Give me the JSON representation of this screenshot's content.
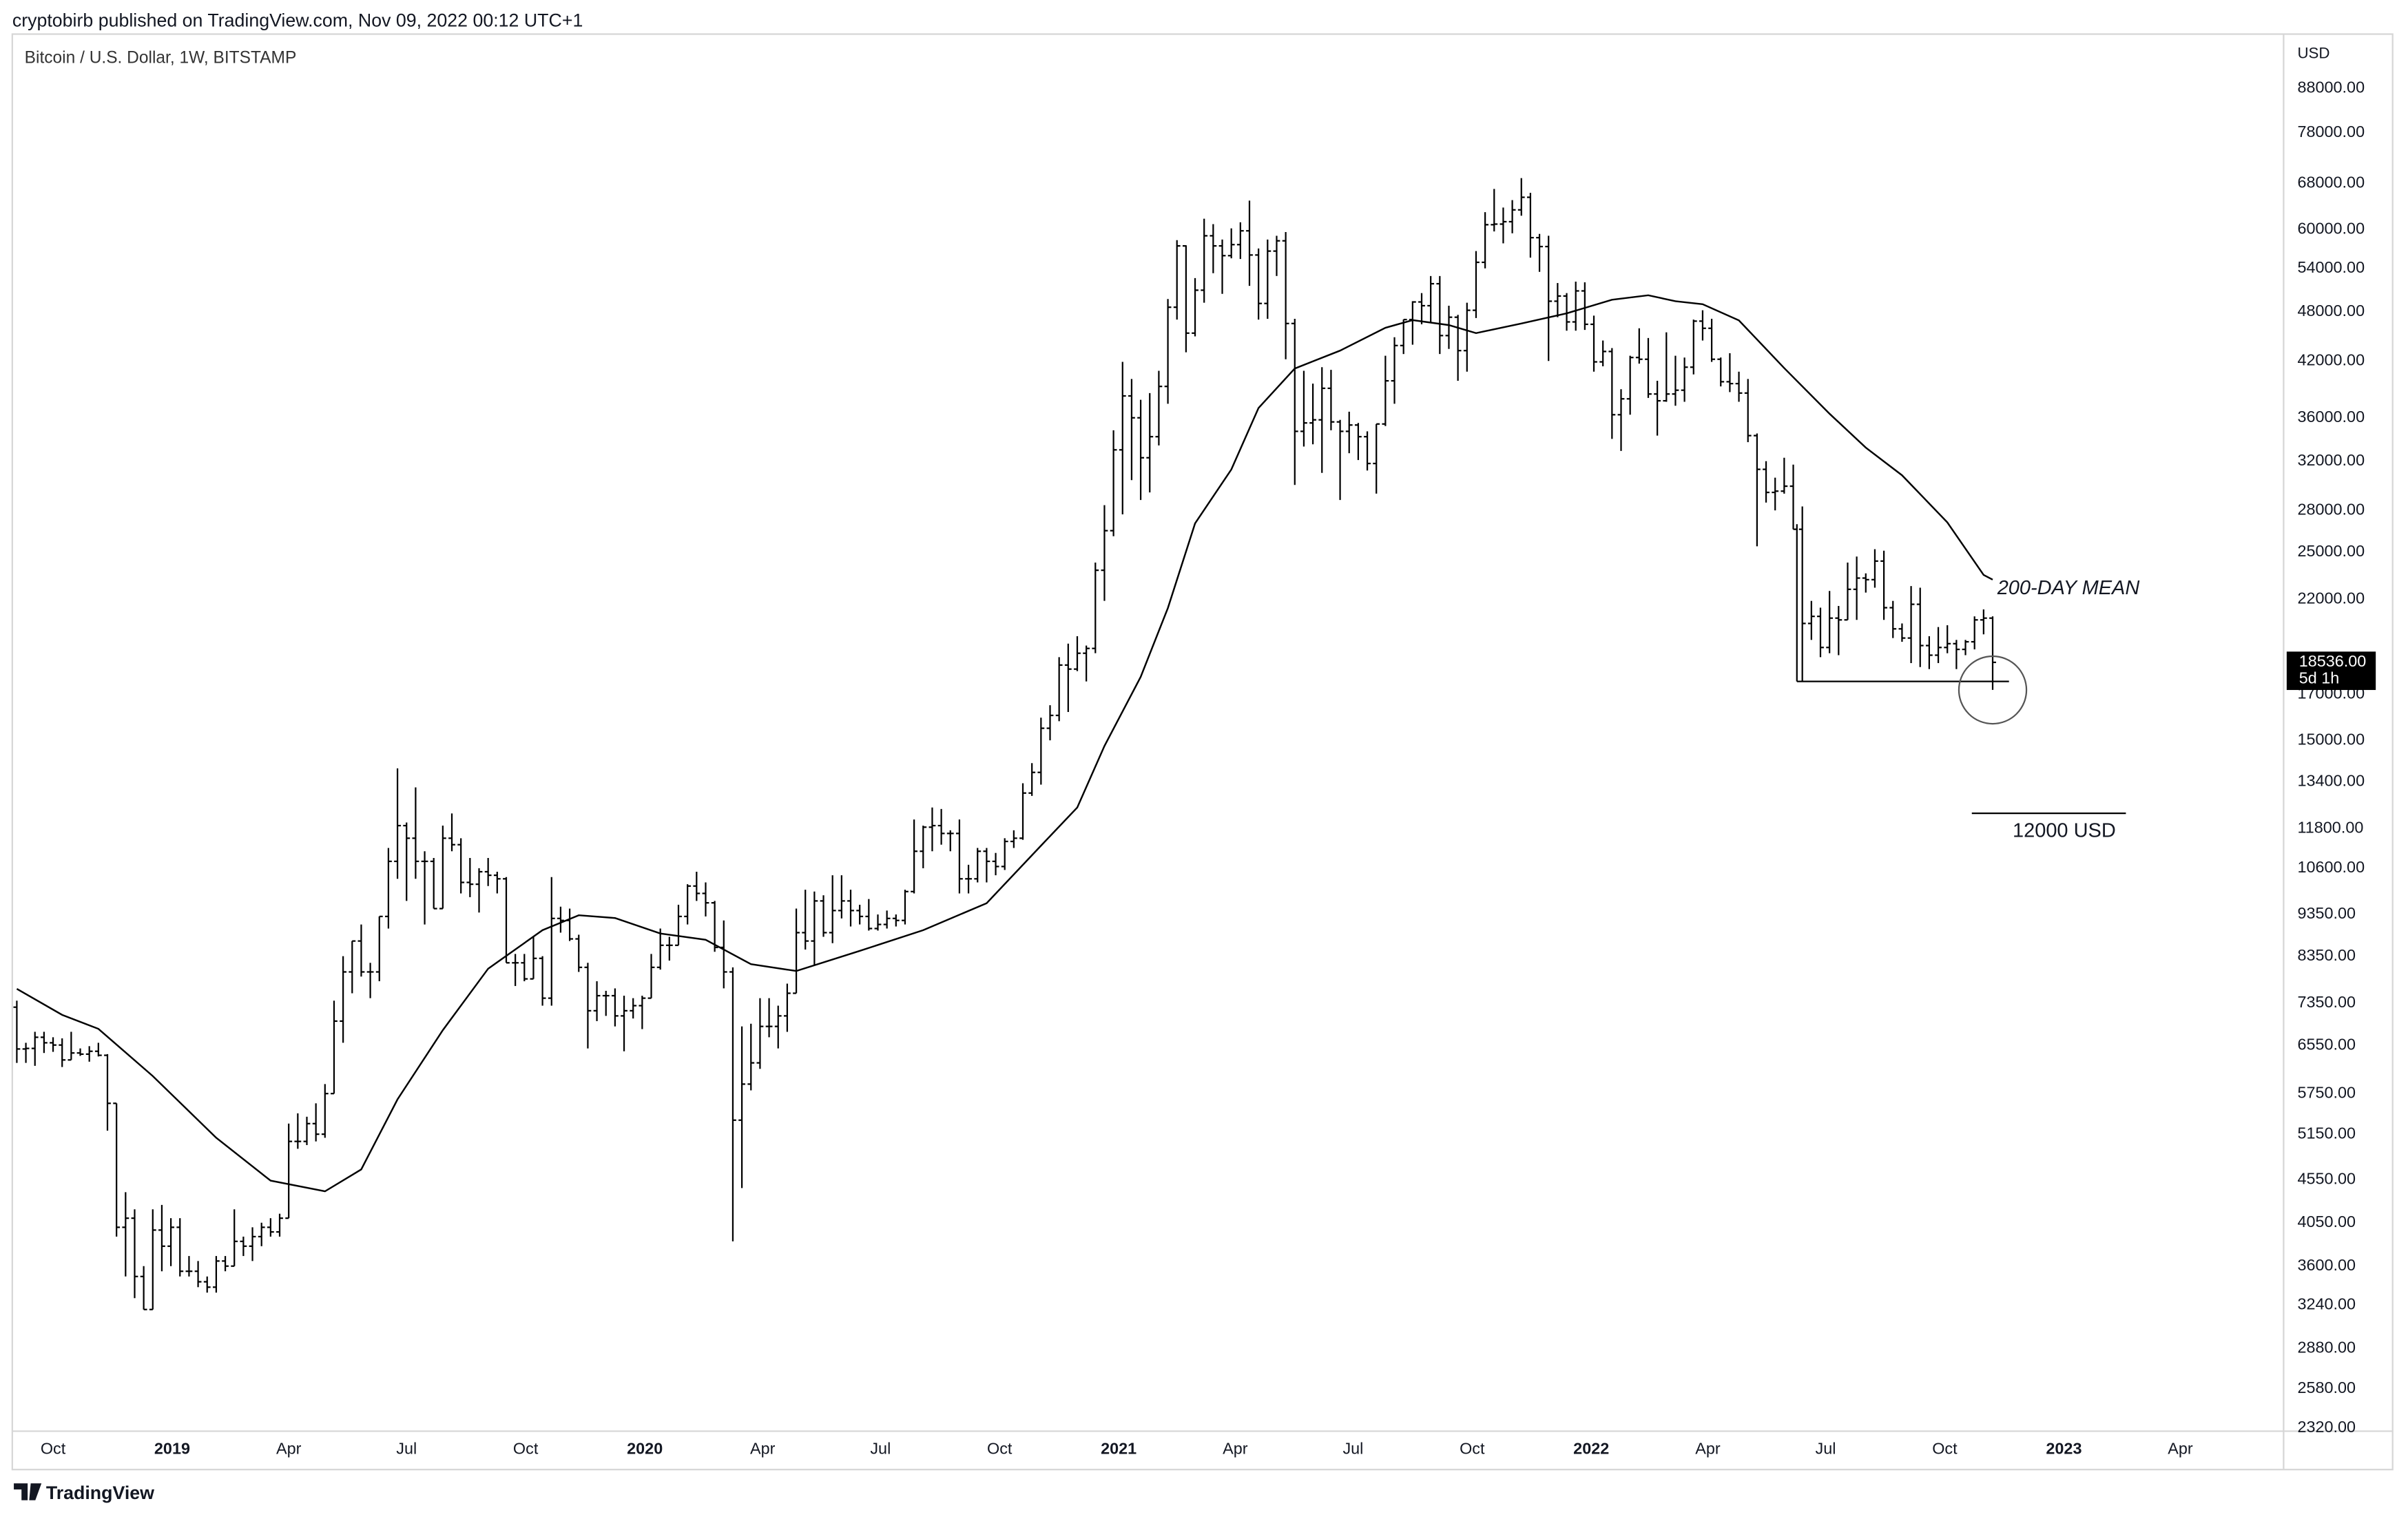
{
  "header": "cryptobirb published on TradingView.com, Nov 09, 2022 00:12 UTC+1",
  "footer": "TradingView",
  "chart_data": {
    "type": "ohlc",
    "title": "Bitcoin / U.S. Dollar, 1W, BITSTAMP",
    "y_unit": "USD",
    "color": "#000000",
    "log_scale": true,
    "grid": false,
    "xlim": [
      -0.5,
      250.1
    ],
    "ylim": [
      2300,
      102000
    ],
    "xticks": [
      {
        "value": 4,
        "label": "Oct"
      },
      {
        "value": 17.14,
        "label": "2019"
      },
      {
        "value": 30,
        "label": "Apr"
      },
      {
        "value": 43,
        "label": "Jul"
      },
      {
        "value": 56.14,
        "label": "Oct"
      },
      {
        "value": 69.29,
        "label": "2020"
      },
      {
        "value": 82.29,
        "label": "Apr"
      },
      {
        "value": 95.29,
        "label": "Jul"
      },
      {
        "value": 108.43,
        "label": "Oct"
      },
      {
        "value": 121.57,
        "label": "2021"
      },
      {
        "value": 134.43,
        "label": "Apr"
      },
      {
        "value": 147.43,
        "label": "Jul"
      },
      {
        "value": 160.57,
        "label": "Oct"
      },
      {
        "value": 173.71,
        "label": "2022"
      },
      {
        "value": 186.57,
        "label": "Apr"
      },
      {
        "value": 199.57,
        "label": "Jul"
      },
      {
        "value": 212.71,
        "label": "Oct"
      },
      {
        "value": 225.86,
        "label": "2023"
      },
      {
        "value": 238.71,
        "label": "Apr"
      }
    ],
    "yticks": [
      {
        "value": 88000,
        "label": "88000.00"
      },
      {
        "value": 78000,
        "label": "78000.00"
      },
      {
        "value": 68000,
        "label": "68000.00"
      },
      {
        "value": 60000,
        "label": "60000.00"
      },
      {
        "value": 54000,
        "label": "54000.00"
      },
      {
        "value": 48000,
        "label": "48000.00"
      },
      {
        "value": 42000,
        "label": "42000.00"
      },
      {
        "value": 36000,
        "label": "36000.00"
      },
      {
        "value": 32000,
        "label": "32000.00"
      },
      {
        "value": 28000,
        "label": "28000.00"
      },
      {
        "value": 25000,
        "label": "25000.00"
      },
      {
        "value": 22000,
        "label": "22000.00"
      },
      {
        "value": 17000,
        "label": "17000.00"
      },
      {
        "value": 15000,
        "label": "15000.00"
      },
      {
        "value": 13400,
        "label": "13400.00"
      },
      {
        "value": 11800,
        "label": "11800.00"
      },
      {
        "value": 10600,
        "label": "10600.00"
      },
      {
        "value": 9350,
        "label": "9350.00"
      },
      {
        "value": 8350,
        "label": "8350.00"
      },
      {
        "value": 7350,
        "label": "7350.00"
      },
      {
        "value": 6550,
        "label": "6550.00"
      },
      {
        "value": 5750,
        "label": "5750.00"
      },
      {
        "value": 5150,
        "label": "5150.00"
      },
      {
        "value": 4550,
        "label": "4550.00"
      },
      {
        "value": 4050,
        "label": "4050.00"
      },
      {
        "value": 3600,
        "label": "3600.00"
      },
      {
        "value": 3240,
        "label": "3240.00"
      },
      {
        "value": 2880,
        "label": "2880.00"
      },
      {
        "value": 2580,
        "label": "2580.00"
      },
      {
        "value": 2320,
        "label": "2320.00"
      }
    ],
    "x": [
      0,
      1,
      2,
      3,
      4,
      5,
      6,
      7,
      8,
      9,
      10,
      11,
      12,
      13,
      14,
      15,
      16,
      17,
      18,
      19,
      20,
      21,
      22,
      23,
      24,
      25,
      26,
      27,
      28,
      29,
      30,
      31,
      32,
      33,
      34,
      35,
      36,
      37,
      38,
      39,
      40,
      41,
      42,
      43,
      44,
      45,
      46,
      47,
      48,
      49,
      50,
      51,
      52,
      53,
      54,
      55,
      56,
      57,
      58,
      59,
      60,
      61,
      62,
      63,
      64,
      65,
      66,
      67,
      68,
      69,
      70,
      71,
      72,
      73,
      74,
      75,
      76,
      77,
      78,
      79,
      80,
      81,
      82,
      83,
      84,
      85,
      86,
      87,
      88,
      89,
      90,
      91,
      92,
      93,
      94,
      95,
      96,
      97,
      98,
      99,
      100,
      101,
      102,
      103,
      104,
      105,
      106,
      107,
      108,
      109,
      110,
      111,
      112,
      113,
      114,
      115,
      116,
      117,
      118,
      119,
      120,
      121,
      122,
      123,
      124,
      125,
      126,
      127,
      128,
      129,
      130,
      131,
      132,
      133,
      134,
      135,
      136,
      137,
      138,
      139,
      140,
      141,
      142,
      143,
      144,
      145,
      146,
      147,
      148,
      149,
      150,
      151,
      152,
      153,
      154,
      155,
      156,
      157,
      158,
      159,
      160,
      161,
      162,
      163,
      164,
      165,
      166,
      167,
      168,
      169,
      170,
      171,
      172,
      173,
      174,
      175,
      176,
      177,
      178,
      179,
      180,
      181,
      182,
      183,
      184,
      185,
      186,
      187,
      188,
      189,
      190,
      191,
      192,
      193,
      194,
      195,
      196,
      197,
      198,
      199,
      200,
      201,
      202,
      203,
      204,
      205,
      206,
      207,
      208,
      209,
      210,
      211,
      212,
      213,
      214,
      215,
      216,
      217,
      218
    ],
    "open": [
      7270,
      6490,
      6500,
      6700,
      6600,
      6560,
      6300,
      6420,
      6400,
      6450,
      6380,
      5600,
      4000,
      4100,
      3500,
      3200,
      3970,
      3800,
      4000,
      3550,
      3550,
      3450,
      3400,
      3650,
      3600,
      3850,
      3800,
      3900,
      4000,
      3950,
      4100,
      5050,
      5050,
      5300,
      5150,
      5750,
      7000,
      8000,
      8700,
      8000,
      8000,
      9300,
      10800,
      11900,
      11500,
      10800,
      10800,
      9500,
      11500,
      11300,
      10200,
      10150,
      10500,
      10400,
      10300,
      8200,
      8200,
      7850,
      8300,
      7450,
      9250,
      9200,
      8750,
      8100,
      7200,
      7500,
      7500,
      7100,
      7200,
      7300,
      7450,
      8100,
      8600,
      8600,
      9300,
      10100,
      9900,
      9650,
      8550,
      8000,
      5350,
      5900,
      6250,
      6900,
      6900,
      7100,
      7550,
      8900,
      8700,
      9700,
      8900,
      9450,
      9700,
      9450,
      9300,
      9000,
      9100,
      9250,
      9200,
      9950,
      11100,
      11850,
      11900,
      11650,
      11650,
      10300,
      10300,
      11100,
      10800,
      10650,
      11400,
      11500,
      13000,
      13750,
      15500,
      16050,
      18400,
      18200,
      19000,
      19250,
      23800,
      26500,
      33000,
      38200,
      36000,
      32300,
      34200,
      39200,
      48600,
      57400,
      45300,
      50900,
      59000,
      57400,
      55900,
      57600,
      59800,
      56000,
      49100,
      56600,
      58200,
      46500,
      34700,
      35500,
      35800,
      39000,
      35600,
      34700,
      35300,
      34200,
      31800,
      35400,
      39800,
      43800,
      47000,
      49300,
      48800,
      51800,
      45000,
      47300,
      43200,
      48200,
      54900,
      60800,
      60900,
      61300,
      63300,
      65500,
      58700,
      57300,
      49400,
      50100,
      46700,
      50800,
      46400,
      41900,
      43100,
      36300,
      37900,
      42400,
      42200,
      38400,
      37700,
      38400,
      38800,
      41300,
      46800,
      45900,
      42200,
      39700,
      39500,
      38500,
      34300,
      31300,
      29400,
      29500,
      29900,
      26600,
      20600,
      21000,
      19300,
      20900,
      20800,
      22600,
      23300,
      23200,
      24400,
      21500,
      20300,
      19800,
      21700,
      19400,
      18900,
      19300,
      19500,
      19200,
      19600,
      20800,
      20900
    ],
    "high": [
      7400,
      6600,
      6800,
      6800,
      6700,
      6680,
      6800,
      6500,
      6540,
      6600,
      6400,
      5600,
      4400,
      4200,
      3600,
      4200,
      4250,
      4100,
      4100,
      3700,
      3650,
      3500,
      3700,
      3700,
      4200,
      3900,
      4000,
      4050,
      4100,
      4150,
      5300,
      5450,
      5400,
      5600,
      5900,
      7400,
      8350,
      8700,
      9100,
      8200,
      9300,
      11200,
      13900,
      12000,
      13200,
      11100,
      10900,
      11900,
      12300,
      11500,
      10900,
      10600,
      10900,
      10500,
      10350,
      8400,
      8400,
      8800,
      8350,
      10350,
      9550,
      9500,
      8850,
      8200,
      7800,
      7600,
      7650,
      7500,
      7450,
      7500,
      8400,
      9000,
      8800,
      9600,
      10150,
      10500,
      10200,
      9700,
      9200,
      8100,
      6900,
      6950,
      7450,
      7450,
      7300,
      7750,
      9500,
      10000,
      9950,
      9850,
      10400,
      10400,
      10000,
      9600,
      9750,
      9350,
      9450,
      9350,
      10000,
      12100,
      11900,
      12500,
      12450,
      11750,
      12100,
      10700,
      11200,
      11200,
      11050,
      11500,
      11750,
      13350,
      14100,
      15950,
      16500,
      18800,
      19500,
      19900,
      19400,
      24300,
      28400,
      34800,
      41900,
      40000,
      37800,
      38500,
      40900,
      49700,
      58300,
      57500,
      52600,
      61800,
      60900,
      58400,
      60200,
      61200,
      64900,
      57000,
      58400,
      59000,
      59600,
      47100,
      40900,
      39500,
      41300,
      41000,
      35800,
      36600,
      35500,
      34700,
      35400,
      42600,
      44800,
      47000,
      49400,
      50500,
      52900,
      52900,
      48800,
      47600,
      49200,
      56600,
      62900,
      67000,
      63700,
      65000,
      69000,
      66300,
      59300,
      59000,
      51900,
      50500,
      52100,
      52000,
      47500,
      44400,
      43500,
      38900,
      42600,
      45900,
      44700,
      39800,
      45400,
      42600,
      42400,
      47000,
      48200,
      47100,
      42400,
      42900,
      40800,
      40000,
      34500,
      32000,
      30600,
      32300,
      31700,
      28300,
      21900,
      21500,
      22500,
      21600,
      24300,
      24700,
      23600,
      25200,
      25100,
      21900,
      20600,
      22800,
      22700,
      19900,
      20400,
      20500,
      19700,
      19700,
      21000,
      21400,
      21000
    ],
    "low": [
      6250,
      6250,
      6200,
      6420,
      6440,
      6180,
      6300,
      6370,
      6270,
      6360,
      5200,
      3900,
      3500,
      3300,
      3200,
      3200,
      3550,
      3600,
      3500,
      3500,
      3400,
      3350,
      3350,
      3550,
      3600,
      3700,
      3650,
      3800,
      3900,
      3900,
      4100,
      4950,
      5000,
      5050,
      5100,
      5750,
      6600,
      7550,
      7900,
      7450,
      7800,
      9000,
      10300,
      9700,
      10300,
      9100,
      9500,
      9500,
      11100,
      9900,
      9800,
      9400,
      10100,
      9900,
      8200,
      7700,
      7800,
      7850,
      7300,
      7300,
      8900,
      8700,
      8000,
      6500,
      7000,
      7100,
      6900,
      6450,
      7050,
      6850,
      7450,
      8050,
      8250,
      8600,
      9100,
      9700,
      9300,
      8450,
      7650,
      3850,
      4450,
      5800,
      6150,
      6700,
      6500,
      6800,
      7550,
      8500,
      8150,
      8800,
      8650,
      9250,
      9050,
      9100,
      8950,
      8950,
      9000,
      9050,
      9100,
      9900,
      10600,
      11100,
      11300,
      11100,
      9900,
      9900,
      10200,
      10200,
      10400,
      10550,
      11200,
      11450,
      12900,
      13300,
      15000,
      15800,
      16200,
      18100,
      17600,
      19000,
      21900,
      26100,
      27700,
      30400,
      28800,
      29400,
      33400,
      37400,
      47000,
      43000,
      44900,
      49200,
      53300,
      50400,
      55500,
      55400,
      51500,
      47000,
      47100,
      52900,
      42200,
      30000,
      33300,
      33500,
      31000,
      34800,
      28800,
      32700,
      32100,
      31200,
      29300,
      35200,
      37400,
      42800,
      43900,
      46400,
      46700,
      42800,
      43400,
      39800,
      40800,
      47200,
      54000,
      59700,
      57800,
      59400,
      62300,
      55600,
      53500,
      42000,
      47300,
      45600,
      45600,
      45700,
      40800,
      41400,
      34000,
      32900,
      36300,
      41700,
      38000,
      34300,
      37600,
      37200,
      37600,
      40500,
      44400,
      41900,
      39200,
      38600,
      37600,
      33700,
      25400,
      28600,
      28000,
      29300,
      26600,
      17600,
      19700,
      18800,
      19000,
      18900,
      20800,
      20800,
      22400,
      22700,
      20800,
      19800,
      19600,
      18500,
      18300,
      18200,
      18500,
      19000,
      18200,
      18900,
      19200,
      20000,
      17200
    ],
    "close": [
      6490,
      6500,
      6700,
      6600,
      6560,
      6300,
      6420,
      6400,
      6450,
      6380,
      5600,
      4000,
      4100,
      3500,
      3200,
      3970,
      3800,
      4000,
      3550,
      3550,
      3450,
      3400,
      3650,
      3600,
      3850,
      3800,
      3900,
      4000,
      3950,
      4100,
      5050,
      5050,
      5300,
      5150,
      5750,
      7000,
      8000,
      8700,
      8000,
      8000,
      9300,
      10800,
      11900,
      11500,
      10800,
      10800,
      9500,
      11500,
      11300,
      10200,
      10150,
      10500,
      10400,
      10300,
      8200,
      8200,
      7850,
      8300,
      7450,
      9250,
      9200,
      8750,
      8100,
      7200,
      7500,
      7500,
      7100,
      7200,
      7300,
      7450,
      8100,
      8600,
      8600,
      9300,
      10100,
      9900,
      9650,
      8550,
      8000,
      5350,
      5900,
      6250,
      6900,
      6900,
      7100,
      7550,
      8900,
      8700,
      9700,
      8900,
      9450,
      9700,
      9450,
      9300,
      9000,
      9100,
      9250,
      9200,
      9950,
      11100,
      11850,
      11900,
      11650,
      11650,
      10300,
      10300,
      11100,
      10800,
      10650,
      11400,
      11500,
      13000,
      13750,
      15500,
      16050,
      18400,
      18200,
      19000,
      19250,
      23800,
      26500,
      33000,
      38200,
      36000,
      32300,
      34200,
      39200,
      48600,
      57400,
      45300,
      50900,
      59000,
      57400,
      55900,
      57600,
      59800,
      56000,
      49100,
      56600,
      58200,
      46500,
      34700,
      35500,
      35800,
      39000,
      35600,
      34700,
      35300,
      34200,
      31800,
      35400,
      39800,
      43800,
      47000,
      49300,
      48800,
      51800,
      45000,
      47300,
      43200,
      48200,
      54900,
      60800,
      60900,
      61300,
      63300,
      65500,
      58700,
      57300,
      49400,
      50100,
      46700,
      50800,
      46400,
      41900,
      43100,
      36300,
      37900,
      42400,
      42200,
      38400,
      37700,
      38400,
      38800,
      41300,
      46800,
      45900,
      42200,
      39700,
      39500,
      38500,
      34300,
      31300,
      29400,
      29500,
      29900,
      26600,
      20600,
      21000,
      19300,
      20900,
      20800,
      22600,
      23300,
      23200,
      24400,
      21500,
      20300,
      19800,
      21700,
      19400,
      18900,
      19300,
      19500,
      19200,
      19600,
      20800,
      20900,
      18536
    ],
    "moving_average": {
      "name": "200-DAY MEAN",
      "color": "#000000",
      "x": [
        0,
        5,
        9,
        15,
        22,
        28,
        34,
        38,
        42,
        47,
        52,
        58,
        62,
        66,
        71,
        76,
        81,
        86,
        93,
        100,
        107,
        113,
        117,
        120,
        124,
        127,
        130,
        134,
        137,
        141,
        146,
        151,
        154,
        158,
        161,
        166,
        171,
        176,
        180,
        183,
        186,
        190,
        195,
        200,
        204,
        208,
        213,
        217,
        218
      ],
      "values": [
        7640,
        7120,
        6855,
        6030,
        5100,
        4540,
        4410,
        4680,
        5660,
        6830,
        8070,
        8960,
        9330,
        9260,
        8880,
        8730,
        8170,
        8020,
        8470,
        8960,
        9640,
        11270,
        12500,
        14770,
        17820,
        21480,
        27030,
        31290,
        36970,
        41150,
        43200,
        45960,
        46930,
        46300,
        45300,
        46500,
        47800,
        49600,
        50200,
        49400,
        49000,
        46900,
        41200,
        36400,
        33200,
        30800,
        27100,
        23500,
        23200
      ]
    },
    "last_price": {
      "value": 18536,
      "label": "18536.00",
      "countdown": "5d 1h"
    },
    "support": {
      "value": 17600,
      "x": [
        196.4,
        219.8
      ]
    },
    "target": {
      "value": 12000,
      "label": "12000 USD",
      "x": [
        215.7,
        232.7
      ]
    }
  }
}
